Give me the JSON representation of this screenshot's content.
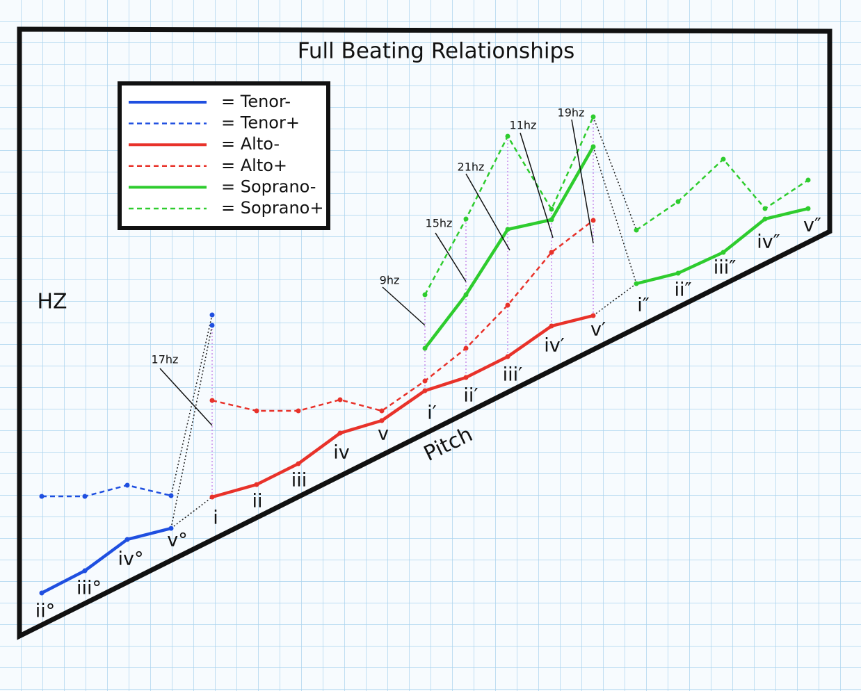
{
  "title": "Full Beating Relationships",
  "axis_labels": {
    "y": "HZ",
    "x": "Pitch"
  },
  "legend": [
    {
      "label": "= Tenor-",
      "color": "#1f4fe0",
      "style": "solid"
    },
    {
      "label": "= Tenor+",
      "color": "#1f4fe0",
      "style": "dashed"
    },
    {
      "label": "= Alto-",
      "color": "#e8322a",
      "style": "solid"
    },
    {
      "label": "= Alto+",
      "color": "#e8322a",
      "style": "dashed"
    },
    {
      "label": "= Soprano-",
      "color": "#2ecc2e",
      "style": "solid"
    },
    {
      "label": "= Soprano+",
      "color": "#2ecc2e",
      "style": "dashed"
    }
  ],
  "notes": [
    "ii°",
    "iii°",
    "iv°",
    "v°",
    "i",
    "ii",
    "iii",
    "iv",
    "v",
    "i′",
    "ii′",
    "iii′",
    "iv′",
    "v′",
    "i″",
    "ii″",
    "iii″",
    "iv″",
    "v″"
  ],
  "beat_labels": [
    "17hz",
    "9hz",
    "15hz",
    "21hz",
    "11hz",
    "19hz"
  ]
}
